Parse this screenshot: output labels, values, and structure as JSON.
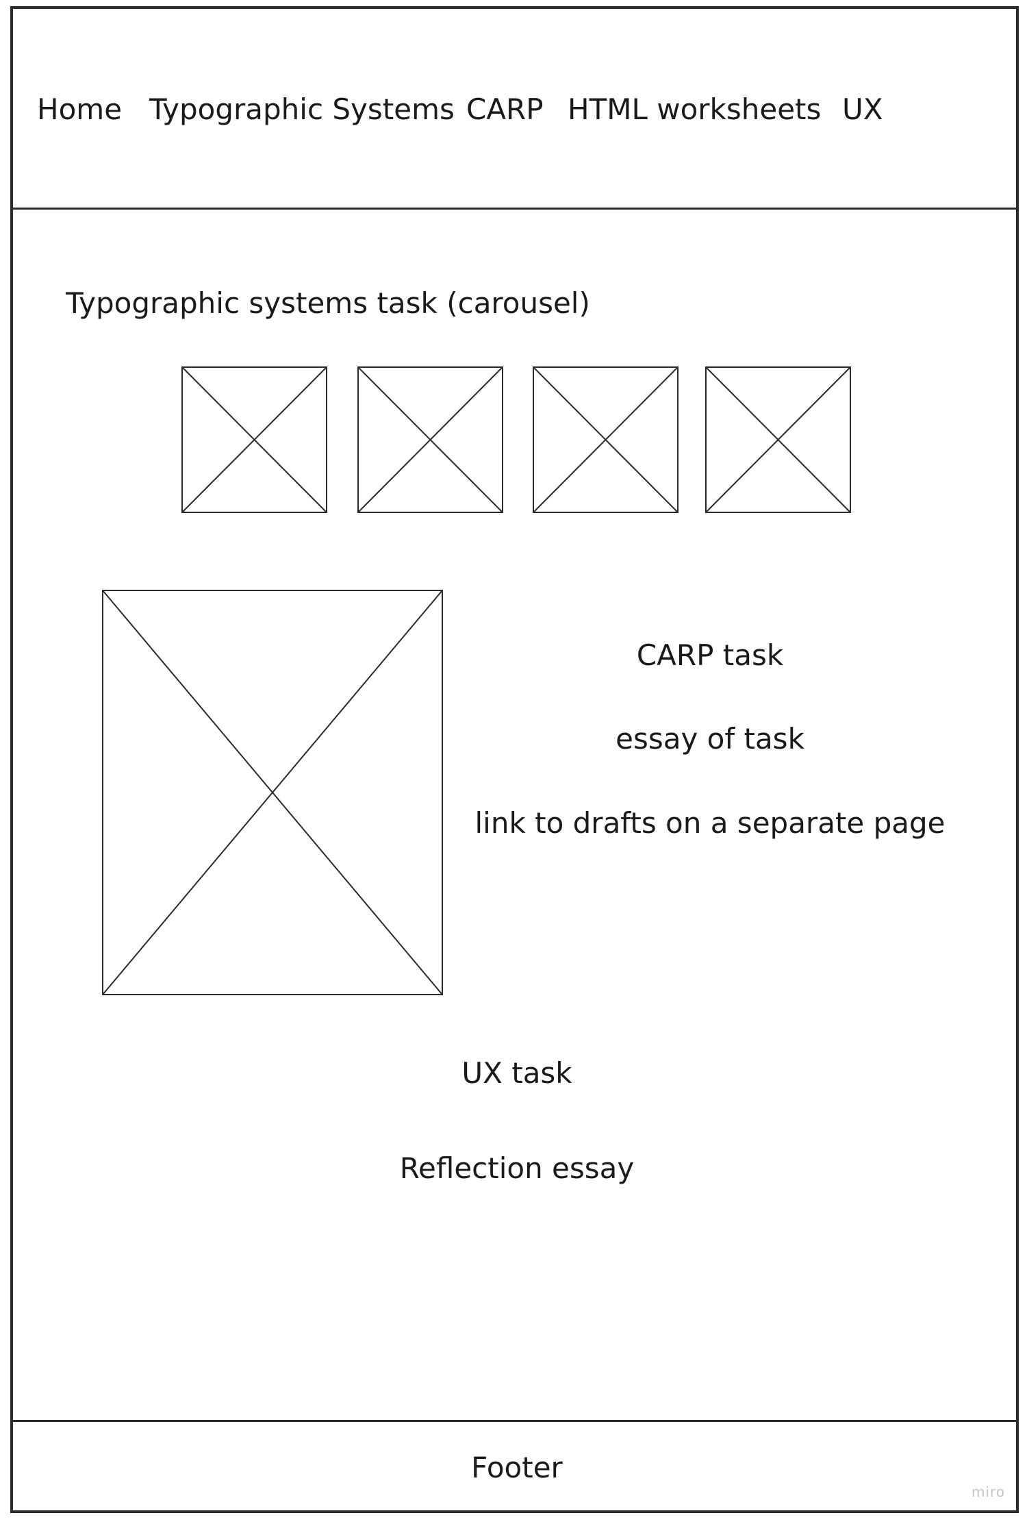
{
  "nav": {
    "items": [
      {
        "label": "Home"
      },
      {
        "label": "Typographic Systems"
      },
      {
        "label": "CARP"
      },
      {
        "label": "HTML worksheets"
      },
      {
        "label": "UX"
      }
    ]
  },
  "typographic_section": {
    "title": "Typographic systems task (carousel)",
    "carousel_images": [
      {
        "icon": "image-placeholder-icon"
      },
      {
        "icon": "image-placeholder-icon"
      },
      {
        "icon": "image-placeholder-icon"
      },
      {
        "icon": "image-placeholder-icon"
      }
    ]
  },
  "carp_section": {
    "image": {
      "icon": "image-placeholder-icon"
    },
    "title": "CARP task",
    "essay": "essay of task",
    "drafts_link": "link to drafts on a separate page"
  },
  "ux_section": {
    "title": "UX task",
    "essay": "Reflection essay"
  },
  "footer": {
    "label": "Footer"
  },
  "watermark": "miro"
}
